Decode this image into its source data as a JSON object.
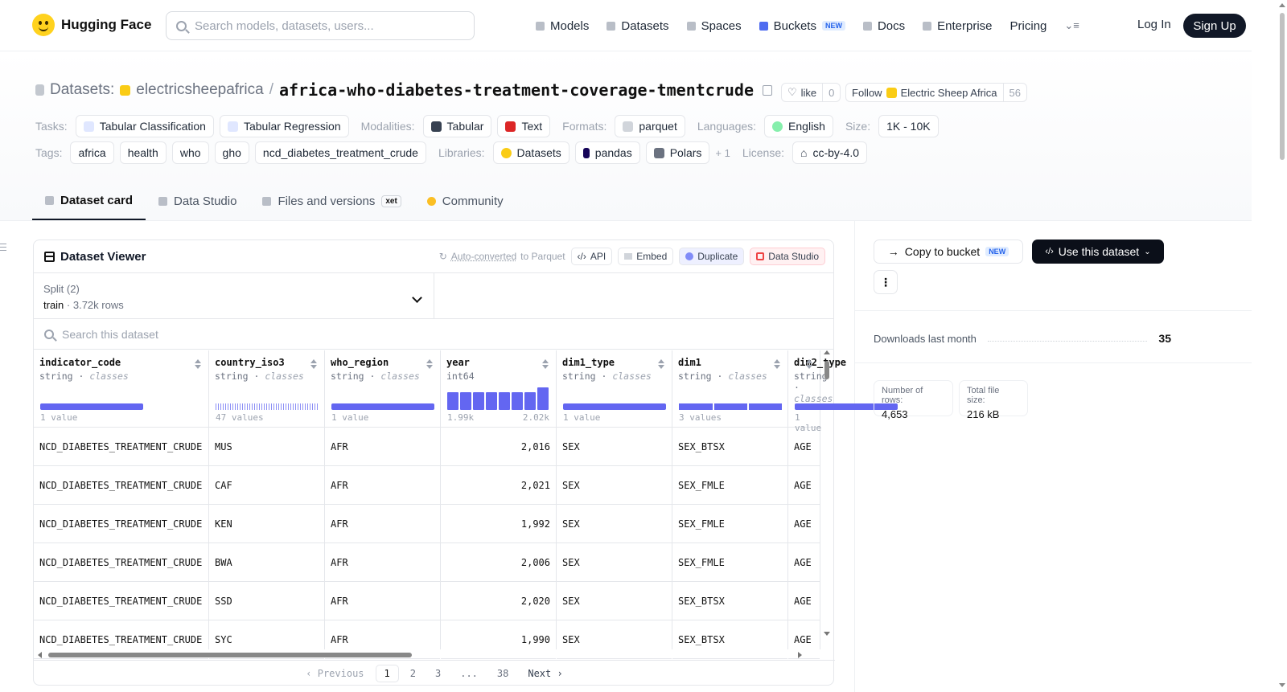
{
  "nav": {
    "logo_text": "Hugging Face",
    "search_placeholder": "Search models, datasets, users...",
    "links": [
      {
        "label": "Models",
        "icon": "models-icon"
      },
      {
        "label": "Datasets",
        "icon": "datasets-icon"
      },
      {
        "label": "Spaces",
        "icon": "spaces-icon"
      },
      {
        "label": "Buckets",
        "icon": "buckets-icon",
        "badge": "NEW"
      },
      {
        "label": "Docs",
        "icon": "docs-icon"
      },
      {
        "label": "Enterprise",
        "icon": "enterprise-icon"
      },
      {
        "label": "Pricing"
      }
    ],
    "login": "Log In",
    "signup": "Sign Up"
  },
  "dataset": {
    "prefix": "Datasets:",
    "owner": "electricsheepafrica",
    "name": "africa-who-diabetes-treatment-coverage-tmentcrude",
    "like_label": "like",
    "like_count": "0",
    "follow_label": "Follow",
    "follow_org": "Electric Sheep Africa",
    "follow_count": "56"
  },
  "meta": {
    "tasks_key": "Tasks:",
    "tasks": [
      "Tabular Classification",
      "Tabular Regression"
    ],
    "modalities_key": "Modalities:",
    "modalities": [
      "Tabular",
      "Text"
    ],
    "formats_key": "Formats:",
    "formats": [
      "parquet"
    ],
    "languages_key": "Languages:",
    "languages": [
      "English"
    ],
    "size_key": "Size:",
    "size": "1K - 10K",
    "tags_key": "Tags:",
    "tags": [
      "africa",
      "health",
      "who",
      "gho",
      "ncd_diabetes_treatment_crude"
    ],
    "libraries_key": "Libraries:",
    "libraries": [
      "Datasets",
      "pandas",
      "Polars"
    ],
    "libraries_more": "+ 1",
    "license_key": "License:",
    "license": "cc-by-4.0"
  },
  "tabs": [
    {
      "label": "Dataset card",
      "active": true
    },
    {
      "label": "Data Studio"
    },
    {
      "label": "Files and versions",
      "badge": "xet"
    },
    {
      "label": "Community"
    }
  ],
  "viewer": {
    "title": "Dataset Viewer",
    "auto_link": "Auto-converted",
    "auto_suffix": "to Parquet",
    "api": "API",
    "embed": "Embed",
    "duplicate": "Duplicate",
    "data_studio": "Data Studio",
    "split_title": "Split (2)",
    "split_name": "train",
    "split_rows": "3.72k rows",
    "search_placeholder": "Search this dataset",
    "columns": [
      {
        "name": "indicator_code",
        "type": "string",
        "kind": "classes",
        "stat": "1 value"
      },
      {
        "name": "country_iso3",
        "type": "string",
        "kind": "classes",
        "stat": "47 values"
      },
      {
        "name": "who_region",
        "type": "string",
        "kind": "classes",
        "stat": "1 value"
      },
      {
        "name": "year",
        "type": "int64",
        "kind": "",
        "stat": "1.99k",
        "stat_max": "2.02k",
        "hist": [
          0.8,
          0.8,
          0.8,
          0.8,
          0.8,
          0.8,
          0.8,
          1.0
        ]
      },
      {
        "name": "dim1_type",
        "type": "string",
        "kind": "classes",
        "stat": "1 value"
      },
      {
        "name": "dim1",
        "type": "string",
        "kind": "classes",
        "stat": "3 values"
      },
      {
        "name": "dim2_type",
        "type": "string",
        "kind": "classes",
        "stat": "1 value"
      }
    ],
    "rows": [
      [
        "NCD_DIABETES_TREATMENT_CRUDE",
        "MUS",
        "AFR",
        "2,016",
        "SEX",
        "SEX_BTSX",
        "AGE"
      ],
      [
        "NCD_DIABETES_TREATMENT_CRUDE",
        "CAF",
        "AFR",
        "2,021",
        "SEX",
        "SEX_FMLE",
        "AGE"
      ],
      [
        "NCD_DIABETES_TREATMENT_CRUDE",
        "KEN",
        "AFR",
        "1,992",
        "SEX",
        "SEX_FMLE",
        "AGE"
      ],
      [
        "NCD_DIABETES_TREATMENT_CRUDE",
        "BWA",
        "AFR",
        "2,006",
        "SEX",
        "SEX_FMLE",
        "AGE"
      ],
      [
        "NCD_DIABETES_TREATMENT_CRUDE",
        "SSD",
        "AFR",
        "2,020",
        "SEX",
        "SEX_BTSX",
        "AGE"
      ],
      [
        "NCD_DIABETES_TREATMENT_CRUDE",
        "SYC",
        "AFR",
        "1,990",
        "SEX",
        "SEX_BTSX",
        "AGE"
      ]
    ],
    "pager": {
      "prev": "Previous",
      "pages": [
        "1",
        "2",
        "3",
        "...",
        "38"
      ],
      "current": "1",
      "next": "Next"
    }
  },
  "sidebar": {
    "copy_bucket": "Copy to bucket",
    "copy_badge": "NEW",
    "use_dataset": "Use this dataset",
    "downloads_label": "Downloads last month",
    "downloads_value": "35",
    "rows_label": "Number of rows:",
    "rows_value": "4,653",
    "size_label": "Total file size:",
    "size_value": "216 kB"
  }
}
